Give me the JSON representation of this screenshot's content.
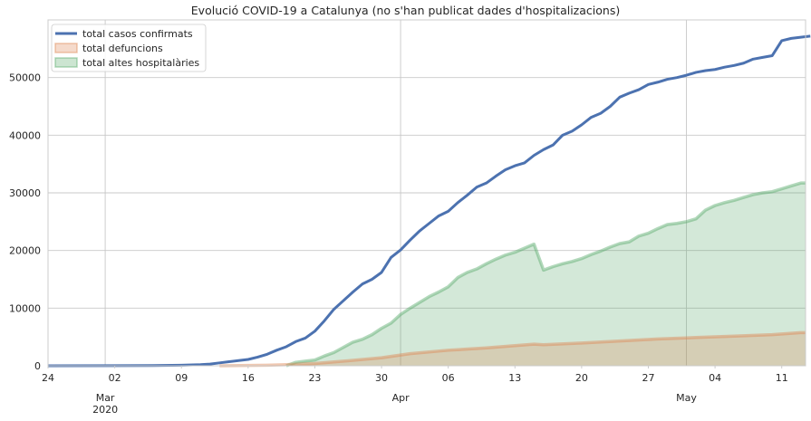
{
  "chart_data": {
    "type": "area",
    "title": "Evolució COVID-19 a Catalunya (no s'han publicat dades d'hospitalizacions)",
    "xlabel": "",
    "ylabel": "",
    "ylim": [
      0,
      60000
    ],
    "grid": true,
    "legend_position": "top-left",
    "x_tick_labels": [
      {
        "date": "2020-02-24",
        "label": "24"
      },
      {
        "date": "2020-03-02",
        "label": "02"
      },
      {
        "date": "2020-03-09",
        "label": "09"
      },
      {
        "date": "2020-03-16",
        "label": "16"
      },
      {
        "date": "2020-03-23",
        "label": "23"
      },
      {
        "date": "2020-03-30",
        "label": "30"
      },
      {
        "date": "2020-04-06",
        "label": "06"
      },
      {
        "date": "2020-04-13",
        "label": "13"
      },
      {
        "date": "2020-04-20",
        "label": "20"
      },
      {
        "date": "2020-04-27",
        "label": "27"
      },
      {
        "date": "2020-05-04",
        "label": "04"
      },
      {
        "date": "2020-05-11",
        "label": "11"
      }
    ],
    "x_month_labels": [
      {
        "date": "2020-03-01",
        "label": "Mar",
        "sublabel": "2020"
      },
      {
        "date": "2020-04-01",
        "label": "Apr",
        "sublabel": ""
      },
      {
        "date": "2020-05-01",
        "label": "May",
        "sublabel": ""
      }
    ],
    "y_tick_labels": [
      {
        "value": 0,
        "label": "0"
      },
      {
        "value": 10000,
        "label": "10000"
      },
      {
        "value": 20000,
        "label": "20000"
      },
      {
        "value": 30000,
        "label": "30000"
      },
      {
        "value": 40000,
        "label": "40000"
      },
      {
        "value": 50000,
        "label": "50000"
      }
    ],
    "series": [
      {
        "name": "total altes hospitalàries",
        "style": "area",
        "color": "#55a868",
        "points": [
          [
            "2020-03-20",
            0
          ],
          [
            "2020-03-21",
            600
          ],
          [
            "2020-03-22",
            800
          ],
          [
            "2020-03-23",
            1000
          ],
          [
            "2020-03-24",
            1700
          ],
          [
            "2020-03-25",
            2300
          ],
          [
            "2020-03-26",
            3200
          ],
          [
            "2020-03-27",
            4100
          ],
          [
            "2020-03-28",
            4600
          ],
          [
            "2020-03-29",
            5400
          ],
          [
            "2020-03-30",
            6500
          ],
          [
            "2020-03-31",
            7400
          ],
          [
            "2020-04-01",
            8900
          ],
          [
            "2020-04-02",
            10000
          ],
          [
            "2020-04-03",
            11000
          ],
          [
            "2020-04-04",
            12000
          ],
          [
            "2020-04-05",
            12800
          ],
          [
            "2020-04-06",
            13700
          ],
          [
            "2020-04-07",
            15300
          ],
          [
            "2020-04-08",
            16200
          ],
          [
            "2020-04-09",
            16800
          ],
          [
            "2020-04-10",
            17700
          ],
          [
            "2020-04-11",
            18500
          ],
          [
            "2020-04-12",
            19200
          ],
          [
            "2020-04-13",
            19700
          ],
          [
            "2020-04-14",
            20400
          ],
          [
            "2020-04-15",
            21100
          ],
          [
            "2020-04-16",
            16600
          ],
          [
            "2020-04-17",
            17200
          ],
          [
            "2020-04-18",
            17700
          ],
          [
            "2020-04-19",
            18100
          ],
          [
            "2020-04-20",
            18600
          ],
          [
            "2020-04-21",
            19300
          ],
          [
            "2020-04-22",
            19900
          ],
          [
            "2020-04-23",
            20600
          ],
          [
            "2020-04-24",
            21200
          ],
          [
            "2020-04-25",
            21500
          ],
          [
            "2020-04-26",
            22500
          ],
          [
            "2020-04-27",
            23000
          ],
          [
            "2020-04-28",
            23800
          ],
          [
            "2020-04-29",
            24500
          ],
          [
            "2020-04-30",
            24700
          ],
          [
            "2020-05-01",
            25000
          ],
          [
            "2020-05-02",
            25500
          ],
          [
            "2020-05-03",
            27000
          ],
          [
            "2020-05-04",
            27800
          ],
          [
            "2020-05-05",
            28300
          ],
          [
            "2020-05-06",
            28700
          ],
          [
            "2020-05-07",
            29200
          ],
          [
            "2020-05-08",
            29700
          ],
          [
            "2020-05-09",
            30000
          ],
          [
            "2020-05-10",
            30200
          ],
          [
            "2020-05-11",
            30700
          ],
          [
            "2020-05-12",
            31200
          ],
          [
            "2020-05-13",
            31700
          ]
        ]
      },
      {
        "name": "total defuncions",
        "style": "area",
        "color": "#dd8452",
        "points": [
          [
            "2020-03-13",
            0
          ],
          [
            "2020-03-18",
            100
          ],
          [
            "2020-03-20",
            200
          ],
          [
            "2020-03-23",
            400
          ],
          [
            "2020-03-26",
            800
          ],
          [
            "2020-03-30",
            1400
          ],
          [
            "2020-04-02",
            2100
          ],
          [
            "2020-04-06",
            2700
          ],
          [
            "2020-04-10",
            3100
          ],
          [
            "2020-04-13",
            3500
          ],
          [
            "2020-04-15",
            3750
          ],
          [
            "2020-04-16",
            3650
          ],
          [
            "2020-04-20",
            3950
          ],
          [
            "2020-04-24",
            4300
          ],
          [
            "2020-04-28",
            4650
          ],
          [
            "2020-05-02",
            4900
          ],
          [
            "2020-05-06",
            5150
          ],
          [
            "2020-05-10",
            5400
          ],
          [
            "2020-05-13",
            5750
          ]
        ]
      },
      {
        "name": "total casos confirmats",
        "style": "line",
        "color": "#4c72b0",
        "points": [
          [
            "2020-02-24",
            0
          ],
          [
            "2020-03-02",
            10
          ],
          [
            "2020-03-06",
            40
          ],
          [
            "2020-03-09",
            100
          ],
          [
            "2020-03-11",
            200
          ],
          [
            "2020-03-12",
            300
          ],
          [
            "2020-03-13",
            500
          ],
          [
            "2020-03-14",
            700
          ],
          [
            "2020-03-15",
            900
          ],
          [
            "2020-03-16",
            1100
          ],
          [
            "2020-03-17",
            1500
          ],
          [
            "2020-03-18",
            2000
          ],
          [
            "2020-03-19",
            2700
          ],
          [
            "2020-03-20",
            3300
          ],
          [
            "2020-03-21",
            4200
          ],
          [
            "2020-03-22",
            4800
          ],
          [
            "2020-03-23",
            6000
          ],
          [
            "2020-03-24",
            7800
          ],
          [
            "2020-03-25",
            9800
          ],
          [
            "2020-03-26",
            11300
          ],
          [
            "2020-03-27",
            12800
          ],
          [
            "2020-03-28",
            14200
          ],
          [
            "2020-03-29",
            15000
          ],
          [
            "2020-03-30",
            16200
          ],
          [
            "2020-03-31",
            18800
          ],
          [
            "2020-04-01",
            20100
          ],
          [
            "2020-04-02",
            21800
          ],
          [
            "2020-04-03",
            23400
          ],
          [
            "2020-04-04",
            24700
          ],
          [
            "2020-04-05",
            26000
          ],
          [
            "2020-04-06",
            26800
          ],
          [
            "2020-04-07",
            28300
          ],
          [
            "2020-04-08",
            29600
          ],
          [
            "2020-04-09",
            31000
          ],
          [
            "2020-04-10",
            31700
          ],
          [
            "2020-04-11",
            32900
          ],
          [
            "2020-04-12",
            34000
          ],
          [
            "2020-04-13",
            34700
          ],
          [
            "2020-04-14",
            35200
          ],
          [
            "2020-04-15",
            36500
          ],
          [
            "2020-04-16",
            37500
          ],
          [
            "2020-04-17",
            38300
          ],
          [
            "2020-04-18",
            40000
          ],
          [
            "2020-04-19",
            40700
          ],
          [
            "2020-04-20",
            41800
          ],
          [
            "2020-04-21",
            43100
          ],
          [
            "2020-04-22",
            43800
          ],
          [
            "2020-04-23",
            45000
          ],
          [
            "2020-04-24",
            46600
          ],
          [
            "2020-04-25",
            47300
          ],
          [
            "2020-04-26",
            47900
          ],
          [
            "2020-04-27",
            48800
          ],
          [
            "2020-04-28",
            49200
          ],
          [
            "2020-04-29",
            49700
          ],
          [
            "2020-04-30",
            50000
          ],
          [
            "2020-05-01",
            50400
          ],
          [
            "2020-05-02",
            50900
          ],
          [
            "2020-05-03",
            51200
          ],
          [
            "2020-05-04",
            51400
          ],
          [
            "2020-05-05",
            51800
          ],
          [
            "2020-05-06",
            52100
          ],
          [
            "2020-05-07",
            52500
          ],
          [
            "2020-05-08",
            53200
          ],
          [
            "2020-05-09",
            53500
          ],
          [
            "2020-05-10",
            53800
          ],
          [
            "2020-05-11",
            56400
          ],
          [
            "2020-05-12",
            56800
          ],
          [
            "2020-05-13",
            57000
          ],
          [
            "2020-05-14",
            57200
          ]
        ]
      }
    ],
    "legend": [
      {
        "label": "total casos confirmats",
        "kind": "line",
        "color": "#4c72b0"
      },
      {
        "label": "total defuncions",
        "kind": "area",
        "color": "#dd8452"
      },
      {
        "label": "total altes hospitalàries",
        "kind": "area",
        "color": "#55a868"
      }
    ]
  }
}
